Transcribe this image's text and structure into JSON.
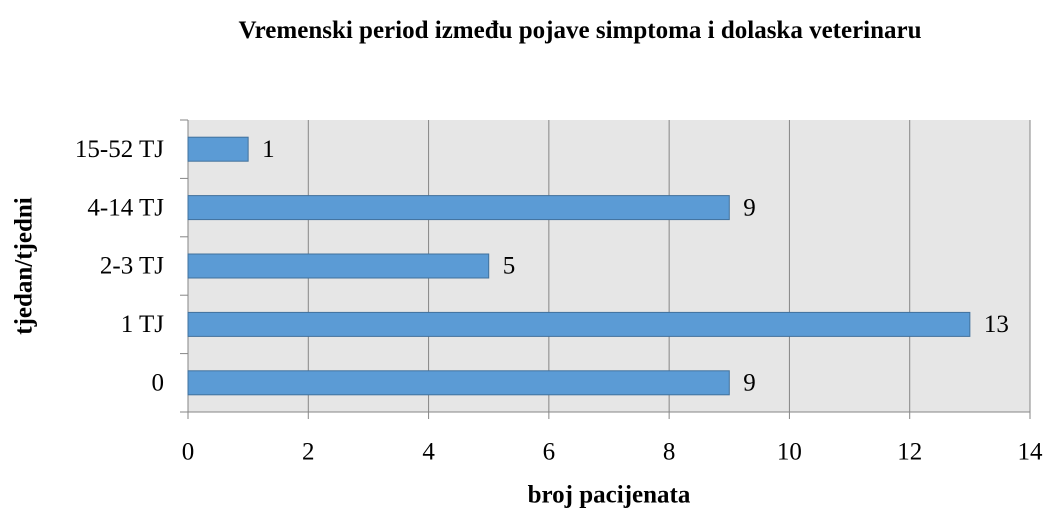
{
  "chart_data": {
    "type": "bar",
    "orientation": "horizontal",
    "title": "Vremenski period između pojave simptoma i dolaska veterinaru",
    "x_label": "broj pacijenata",
    "y_label": "tjedan/tjedni",
    "categories": [
      "0",
      "1 TJ",
      "2-3 TJ",
      "4-14 TJ",
      "15-52 TJ"
    ],
    "values": [
      9,
      13,
      5,
      9,
      1
    ],
    "color": "#5b9bd5",
    "xlim": [
      0,
      14
    ],
    "xticks": [
      0,
      2,
      4,
      6,
      8,
      10,
      12,
      14
    ],
    "grid": true
  }
}
